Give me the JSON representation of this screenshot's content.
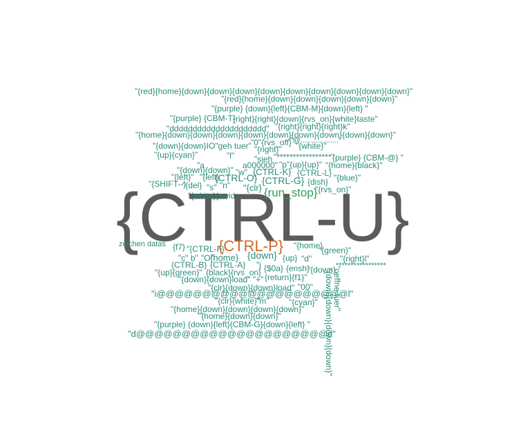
{
  "colors": {
    "teal": "#2a8c7a",
    "gray": "#5b5b5b",
    "orange": "#d2661f",
    "green": "#2e9e5a"
  },
  "words": [
    {
      "text": "{CTRL-U}",
      "color": "gray"
    },
    {
      "text": "{CTRL-P}",
      "color": "orange"
    },
    {
      "text": "{run_stop}",
      "color": "green"
    },
    {
      "text": "\"{red}{home}{down}{down}{down}{down}{down}{down}{down}{down}{down}\"",
      "color": "teal"
    },
    {
      "text": "\"{red}{home}{down}{down}{down}{down}{down}\"",
      "color": "teal"
    },
    {
      "text": "\"{purple} {down}{left}{CBM-M}{down}{left} \"",
      "color": "teal"
    },
    {
      "text": "\"{purple} {CBM-T}",
      "color": "teal"
    },
    {
      "text": "{right}{right}{down}{rvs_on}{white}taste\"",
      "color": "teal"
    },
    {
      "text": "\"ddddddddddddddddddddd\"",
      "color": "teal"
    },
    {
      "text": "\"{right}{right}{right}k\"",
      "color": "teal"
    },
    {
      "text": "\"{home}{down}{down}{down}{down}{down}{down}{down}{down}{down}\"",
      "color": "teal"
    },
    {
      "text": "\"0\"{rvs_off}",
      "color": "teal"
    },
    {
      "text": "\"@..................\"",
      "color": "teal"
    },
    {
      "text": "\"{down}{down}IO\"geh tuer\"",
      "color": "teal"
    },
    {
      "text": "\"{right}\"",
      "color": "teal"
    },
    {
      "text": "\"{white}\"",
      "color": "teal"
    },
    {
      "text": "\"{up}{cyan}\"",
      "color": "teal"
    },
    {
      "text": "\"l\"",
      "color": "teal"
    },
    {
      "text": "\"sieh",
      "color": "teal"
    },
    {
      "text": "\"*****************\"",
      "color": "teal"
    },
    {
      "text": "{purple} {CBM-@} \"",
      "color": "teal"
    },
    {
      "text": "\"a",
      "color": "teal"
    },
    {
      "text": "a000000\"",
      "color": "teal"
    },
    {
      "text": "\"p\"{up}{up}\"",
      "color": "teal"
    },
    {
      "text": "\"{home}{black}\"",
      "color": "teal"
    },
    {
      "text": "\"{down}{down}\"",
      "color": "teal"
    },
    {
      "text": "\"w\"",
      "color": "teal"
    },
    {
      "text": "{CTRL-K}",
      "color": "teal"
    },
    {
      "text": "{CTRL-L}",
      "color": "teal"
    },
    {
      "text": "\"{left}\"",
      "color": "teal"
    },
    {
      "text": "\"{left}",
      "color": "teal"
    },
    {
      "text": "{CTRL-O}",
      "color": "teal"
    },
    {
      "text": "{CTRL-G}",
      "color": "teal"
    },
    {
      "text": "{dish}",
      "color": "teal"
    },
    {
      "text": "\"{blue}\"",
      "color": "teal"
    },
    {
      "text": "\"{SHIFT--}",
      "color": "teal"
    },
    {
      "text": "\"{del}",
      "color": "teal"
    },
    {
      "text": "\"s\"",
      "color": "teal"
    },
    {
      "text": "\"n\"",
      "color": "teal"
    },
    {
      "text": "\"{clr}",
      "color": "teal"
    },
    {
      "text": "\"{rvs_on}\"",
      "color": "teal"
    },
    {
      "text": "\"{white}{swid",
      "color": "teal"
    },
    {
      "text": "zeichen datas",
      "color": "teal"
    },
    {
      "text": "{f7}",
      "color": "teal"
    },
    {
      "text": "\"{CTRL-F}",
      "color": "teal"
    },
    {
      "text": "\"{home}",
      "color": "teal"
    },
    {
      "text": "\"{green}\"",
      "color": "teal"
    },
    {
      "text": "\"c\" b\"",
      "color": "teal"
    },
    {
      "text": "\"O\"",
      "color": "teal"
    },
    {
      "text": "{home}",
      "color": "teal"
    },
    {
      "text": "{down}",
      "color": "teal"
    },
    {
      "text": "{up}",
      "color": "teal"
    },
    {
      "text": "\"d\"",
      "color": "teal"
    },
    {
      "text": "\"{right}l\"",
      "color": "teal"
    },
    {
      "text": "{CTRL-B}",
      "color": "teal"
    },
    {
      "text": "{CTRL-A}",
      "color": "teal"
    },
    {
      "text": "\"j",
      "color": "teal"
    },
    {
      "text": "{$0a}",
      "color": "teal"
    },
    {
      "text": "{ensh}",
      "color": "teal"
    },
    {
      "text": "\"{down}",
      "color": "teal"
    },
    {
      "text": "*****************",
      "color": "teal"
    },
    {
      "text": "\"{up}{green}\"",
      "color": "teal"
    },
    {
      "text": "{black}{rvs_on}",
      "color": "teal"
    },
    {
      "text": "{return}{f1}\"",
      "color": "teal"
    },
    {
      "text": "\"{down}{down}load\"",
      "color": "teal"
    },
    {
      "text": "\"+\"",
      "color": "teal"
    },
    {
      "text": "\"{clr}{down}{down}load\"",
      "color": "teal"
    },
    {
      "text": "\"00\"",
      "color": "teal"
    },
    {
      "text": "\"i@@@@@@@@@@@@@@@@@@@@@l\"",
      "color": "teal"
    },
    {
      "text": "\"{clr}{white}\"",
      "color": "teal"
    },
    {
      "text": "\"m\"",
      "color": "teal"
    },
    {
      "text": "\"{cyan}\"",
      "color": "teal"
    },
    {
      "text": "\"{home}{down}{down}{down}{down}\"",
      "color": "teal"
    },
    {
      "text": "\"{home}{down}{down}\"",
      "color": "teal"
    },
    {
      "text": "\"{purple} {down}{left}{CBM-G}{down}{left} \"",
      "color": "teal"
    },
    {
      "text": "\"d@@@@@@@@@@@@@@@@@@@@@d\"",
      "color": "teal"
    },
    {
      "text": "\"{down}{down}{down}{down}\"",
      "color": "teal"
    },
    {
      "text": "\"oeffne tuer\"",
      "color": "teal"
    }
  ]
}
